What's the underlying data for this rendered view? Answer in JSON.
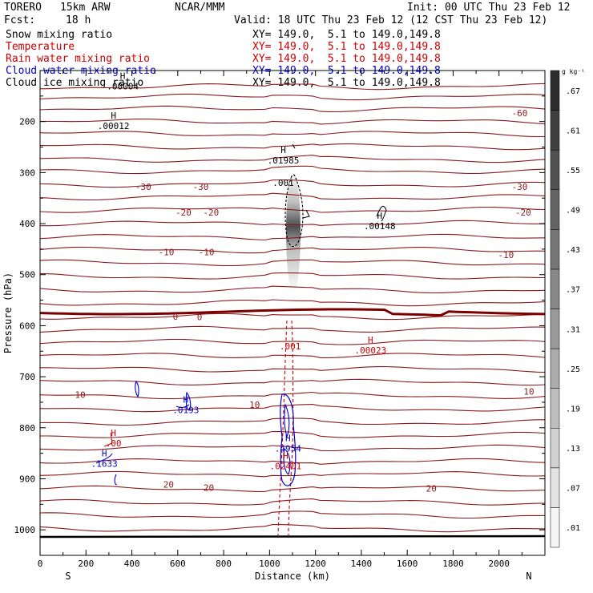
{
  "header": {
    "model": "TORERO",
    "resolution": "15km ARW",
    "org": "NCAR/MMM",
    "init": "Init: 00 UTC Thu 23 Feb 12",
    "fcst_label": "Fcst:",
    "fcst_value": "18 h",
    "valid": "Valid: 18 UTC Thu 23 Feb 12 (12 CST Thu 23 Feb 12)"
  },
  "legend": [
    {
      "name": "Snow mixing ratio",
      "xy": "XY= 149.0,  5.1 to 149.0,149.8",
      "color": "#000000"
    },
    {
      "name": "Temperature",
      "xy": "XY= 149.0,  5.1 to 149.0,149.8",
      "color": "#cc0000"
    },
    {
      "name": "Rain water mixing ratio",
      "xy": "XY= 149.0,  5.1 to 149.0,149.8",
      "color": "#cc0000"
    },
    {
      "name": "Cloud water mixing ratio",
      "xy": "XY= 149.0,  5.1 to 149.0,149.8",
      "color": "#0000cc"
    },
    {
      "name": "Cloud ice mixing ratio",
      "xy": "XY= 149.0,  5.1 to 149.0,149.8",
      "color": "#000000"
    }
  ],
  "chart_data": {
    "type": "contour-cross-section",
    "xlabel": "Distance (km)",
    "ylabel": "Pressure (hPa)",
    "xlim": [
      0,
      2200
    ],
    "ylim": [
      1050,
      100
    ],
    "x_ticks": [
      0,
      200,
      400,
      600,
      800,
      1000,
      1200,
      1400,
      1600,
      1800,
      2000
    ],
    "y_ticks": [
      200,
      300,
      400,
      500,
      600,
      700,
      800,
      900,
      1000
    ],
    "x_end_labels": {
      "left": "S",
      "right": "N"
    },
    "colorbar": {
      "unit": "g kg⁻¹",
      "levels": [
        ".01",
        ".07",
        ".13",
        ".19",
        ".25",
        ".31",
        ".37",
        ".43",
        ".49",
        ".55",
        ".61",
        ".67"
      ]
    },
    "temperature_contours": [
      {
        "label": "-60",
        "label_x": 2090,
        "label_p": 183
      },
      {
        "label": "-30",
        "label_x": 450,
        "label_p": 328
      },
      {
        "label": "-30",
        "label_x": 700,
        "label_p": 328
      },
      {
        "label": "-30",
        "label_x": 2090,
        "label_p": 328
      },
      {
        "label": "-20",
        "label_x": 625,
        "label_p": 378
      },
      {
        "label": "-20",
        "label_x": 745,
        "label_p": 378
      },
      {
        "label": "-20",
        "label_x": 2105,
        "label_p": 378
      },
      {
        "label": "-10",
        "label_x": 550,
        "label_p": 456
      },
      {
        "label": "-10",
        "label_x": 725,
        "label_p": 456
      },
      {
        "label": "-10",
        "label_x": 2030,
        "label_p": 461
      },
      {
        "label": "0",
        "label_x": 590,
        "label_p": 582
      },
      {
        "label": "0",
        "label_x": 695,
        "label_p": 583
      },
      {
        "label": "10",
        "label_x": 175,
        "label_p": 735
      },
      {
        "label": "10",
        "label_x": 935,
        "label_p": 755
      },
      {
        "label": "10",
        "label_x": 2130,
        "label_p": 729
      },
      {
        "label": "20",
        "label_x": 560,
        "label_p": 911
      },
      {
        "label": "20",
        "label_x": 735,
        "label_p": 917
      },
      {
        "label": "20",
        "label_x": 1705,
        "label_p": 919
      }
    ],
    "annotations": [
      {
        "text": "H",
        "sub": ".00004",
        "series": "Cloud ice mixing ratio",
        "x": 360,
        "p": 131,
        "color": "#000000"
      },
      {
        "text": "H",
        "sub": ".00012",
        "series": "Cloud ice mixing ratio",
        "x": 320,
        "p": 208,
        "color": "#000000"
      },
      {
        "text": "H",
        "sub": ".01985",
        "series": "Snow mixing ratio",
        "x": 1060,
        "p": 276,
        "color": "#000000"
      },
      {
        "text": "",
        "sub": ".001",
        "series": "Snow mixing ratio",
        "x": 1060,
        "p": 320,
        "color": "#000000"
      },
      {
        "text": "H",
        "sub": ".00148",
        "series": "Cloud ice mixing ratio",
        "x": 1480,
        "p": 405,
        "color": "#000000"
      },
      {
        "text": "",
        "sub": ".001",
        "series": "Rain water mixing ratio",
        "x": 1090,
        "p": 640,
        "color": "#cc0000"
      },
      {
        "text": "H",
        "sub": ".00023",
        "series": "Rain water mixing ratio",
        "x": 1440,
        "p": 648,
        "color": "#cc0000"
      },
      {
        "text": "H",
        "sub": ".0193",
        "series": "Cloud water mixing ratio",
        "x": 635,
        "p": 765,
        "color": "#0000cc"
      },
      {
        "text": "H",
        "sub": ".00",
        "series": "Rain water mixing ratio",
        "x": 320,
        "p": 830,
        "color": "#cc0000"
      },
      {
        "text": "H",
        "sub": ".4954",
        "series": "Cloud water mixing ratio",
        "x": 1080,
        "p": 840,
        "color": "#0000cc"
      },
      {
        "text": "H",
        "sub": ".02401",
        "series": "Rain water mixing ratio",
        "x": 1070,
        "p": 875,
        "color": "#cc0000"
      },
      {
        "text": "H",
        "sub": ".1633",
        "series": "Cloud water mixing ratio",
        "x": 280,
        "p": 870,
        "color": "#0000cc"
      }
    ]
  },
  "colors": {
    "temperature": "#8b1a1a",
    "zero_isotherm": "#7a0000",
    "rain": "#cc0000",
    "cloud_water": "#0000cc",
    "snow": "#000000",
    "ground": "#000000"
  }
}
